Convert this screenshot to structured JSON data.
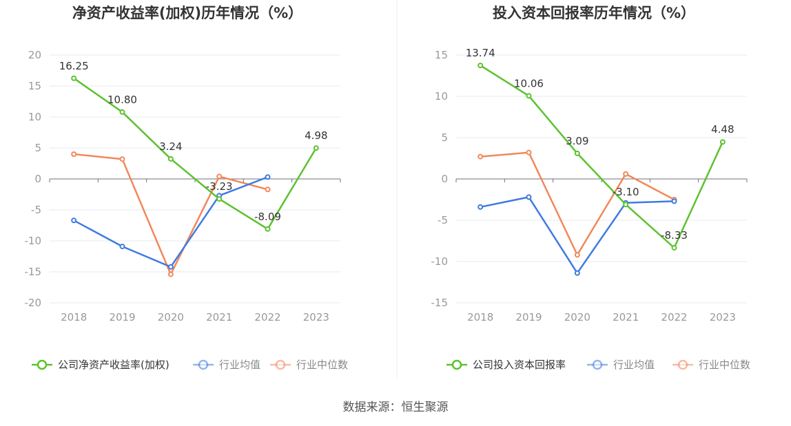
{
  "source_text": "数据来源：恒生聚源",
  "chart_data": [
    {
      "type": "line",
      "title": "净资产收益率(加权)历年情况（%）",
      "categories": [
        "2018",
        "2019",
        "2020",
        "2021",
        "2022",
        "2023"
      ],
      "ylim": [
        -20,
        20
      ],
      "yticks": [
        "20",
        "15",
        "10",
        "5",
        "0",
        "-5",
        "-10",
        "-15",
        "-20"
      ],
      "grid": true,
      "legend_position": "bottom",
      "series": [
        {
          "name": "公司净资产收益率(加权)",
          "color": "#5cc22e",
          "labeled": true,
          "values": [
            16.25,
            10.8,
            3.24,
            -3.23,
            -8.09,
            4.98
          ],
          "labels": [
            "16.25",
            "10.80",
            "3.24",
            "-3.23",
            "-8.09",
            "4.98"
          ]
        },
        {
          "name": "行业均值",
          "color": "#3f7ae0",
          "labeled": false,
          "values": [
            -6.7,
            -10.9,
            -14.2,
            -2.7,
            0.3,
            null
          ]
        },
        {
          "name": "行业中位数",
          "color": "#f2875a",
          "labeled": false,
          "values": [
            4.0,
            3.2,
            -15.4,
            0.4,
            -1.7,
            null
          ]
        }
      ]
    },
    {
      "type": "line",
      "title": "投入资本回报率历年情况（%）",
      "categories": [
        "2018",
        "2019",
        "2020",
        "2021",
        "2022",
        "2023"
      ],
      "ylim": [
        -15,
        15
      ],
      "yticks": [
        "15",
        "10",
        "5",
        "0",
        "-5",
        "-10",
        "-15"
      ],
      "grid": true,
      "legend_position": "bottom",
      "series": [
        {
          "name": "公司投入资本回报率",
          "color": "#5cc22e",
          "labeled": true,
          "values": [
            13.74,
            10.06,
            3.09,
            -3.1,
            -8.33,
            4.48
          ],
          "labels": [
            "13.74",
            "10.06",
            "3.09",
            "-3.10",
            "-8.33",
            "4.48"
          ]
        },
        {
          "name": "行业均值",
          "color": "#3f7ae0",
          "labeled": false,
          "values": [
            -3.4,
            -2.2,
            -11.4,
            -2.9,
            -2.7,
            null
          ]
        },
        {
          "name": "行业中位数",
          "color": "#f2875a",
          "labeled": false,
          "values": [
            2.7,
            3.2,
            -9.2,
            0.6,
            -2.5,
            null
          ]
        }
      ]
    }
  ]
}
